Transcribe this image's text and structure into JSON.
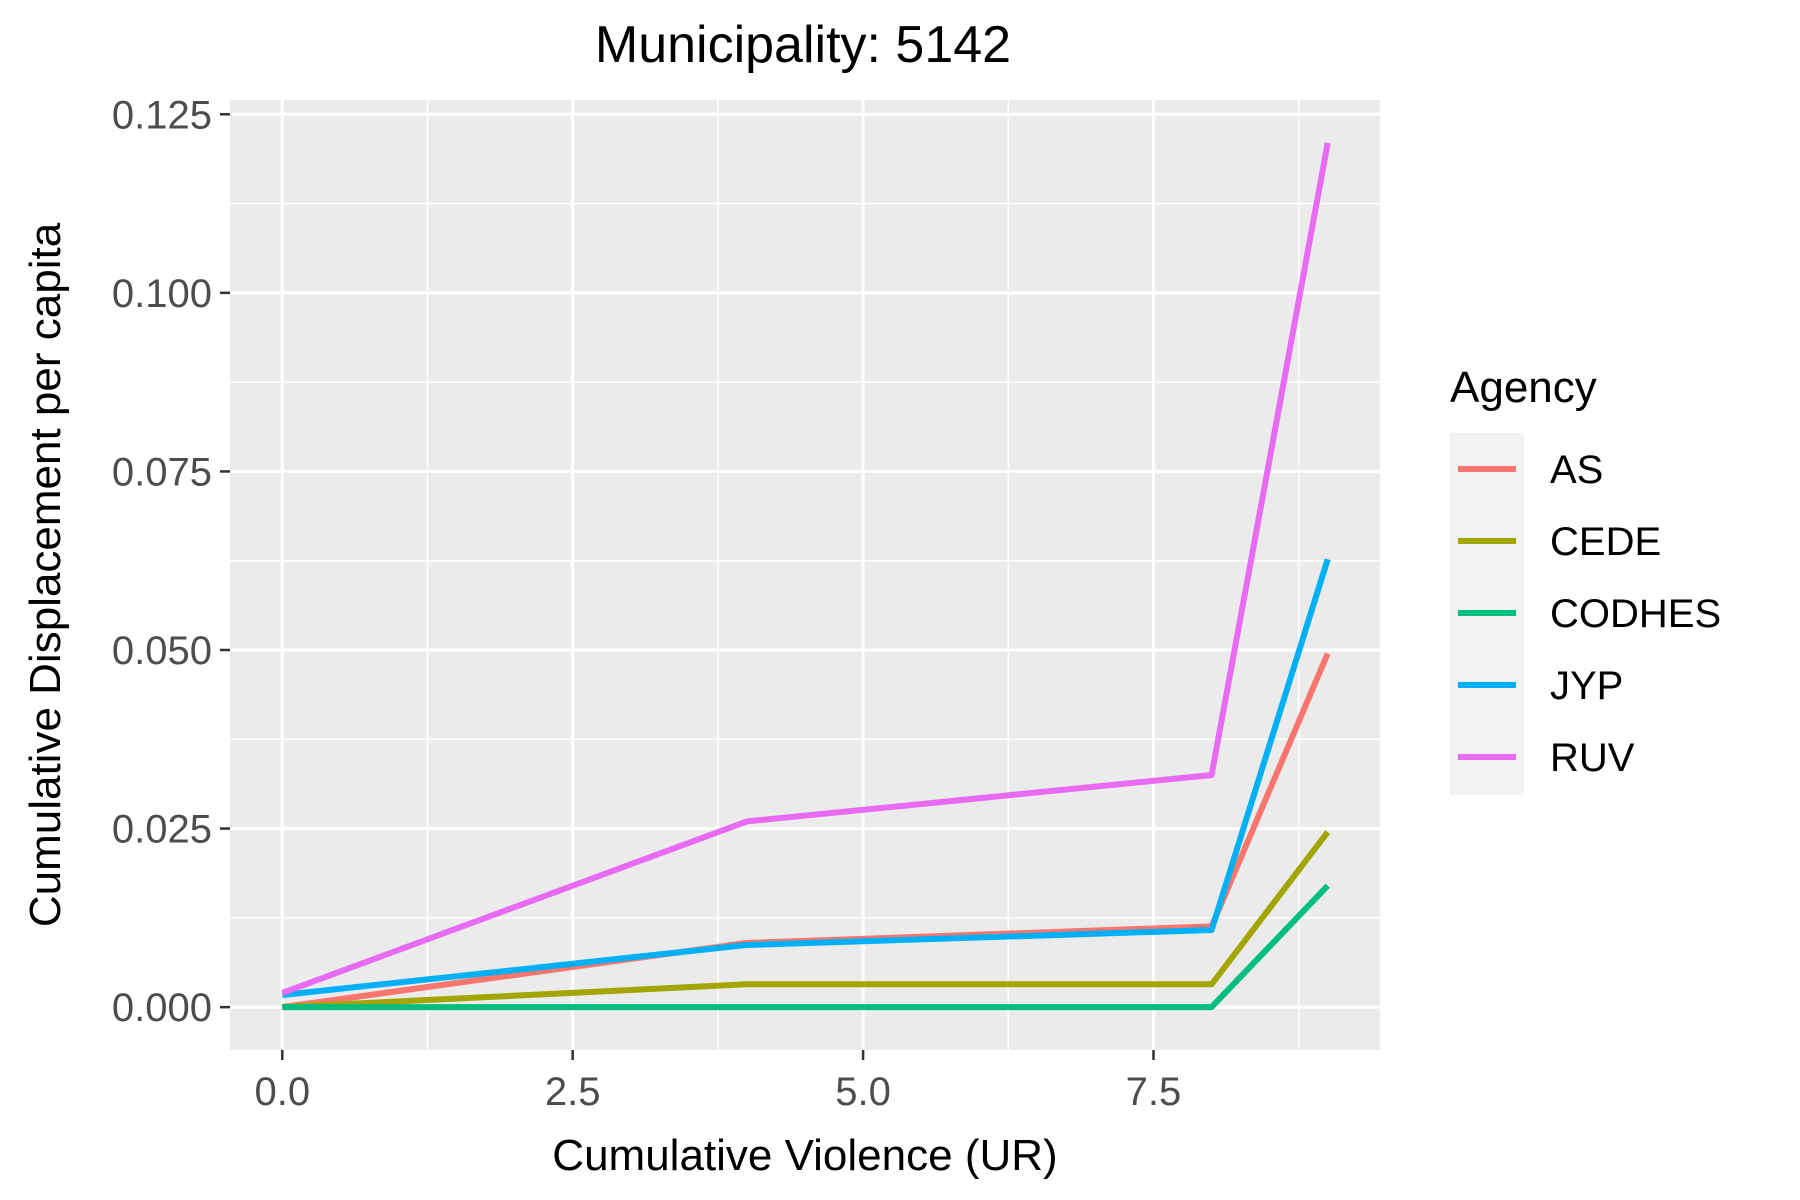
{
  "chart_data": {
    "type": "line",
    "title": "Municipality: 5142",
    "xlabel": "Cumulative Violence (UR)",
    "ylabel": "Cumulative Displacement per capita",
    "xlim": [
      -0.45,
      9.45
    ],
    "ylim": [
      -0.006,
      0.127
    ],
    "x_ticks": [
      0.0,
      2.5,
      5.0,
      7.5
    ],
    "x_tick_labels": [
      "0.0",
      "2.5",
      "5.0",
      "7.5"
    ],
    "y_ticks": [
      0.0,
      0.025,
      0.05,
      0.075,
      0.1,
      0.125
    ],
    "y_tick_labels": [
      "0.000",
      "0.025",
      "0.050",
      "0.075",
      "0.100",
      "0.125"
    ],
    "grid": true,
    "legend_title": "Agency",
    "legend_position": "right",
    "x": [
      0,
      4,
      8,
      9
    ],
    "series": [
      {
        "name": "AS",
        "color": "#F8766D",
        "values": [
          0.0,
          0.009,
          0.0113,
          0.0495
        ]
      },
      {
        "name": "CEDE",
        "color": "#A3A500",
        "values": [
          0.0,
          0.0032,
          0.0032,
          0.0245
        ]
      },
      {
        "name": "CODHES",
        "color": "#00BF7D",
        "values": [
          0.0,
          0.0,
          0.0,
          0.017
        ]
      },
      {
        "name": "JYP",
        "color": "#00B0F6",
        "values": [
          0.0017,
          0.0087,
          0.0108,
          0.0627
        ]
      },
      {
        "name": "RUV",
        "color": "#E76BF3",
        "values": [
          0.002,
          0.026,
          0.0325,
          0.121
        ]
      }
    ]
  }
}
